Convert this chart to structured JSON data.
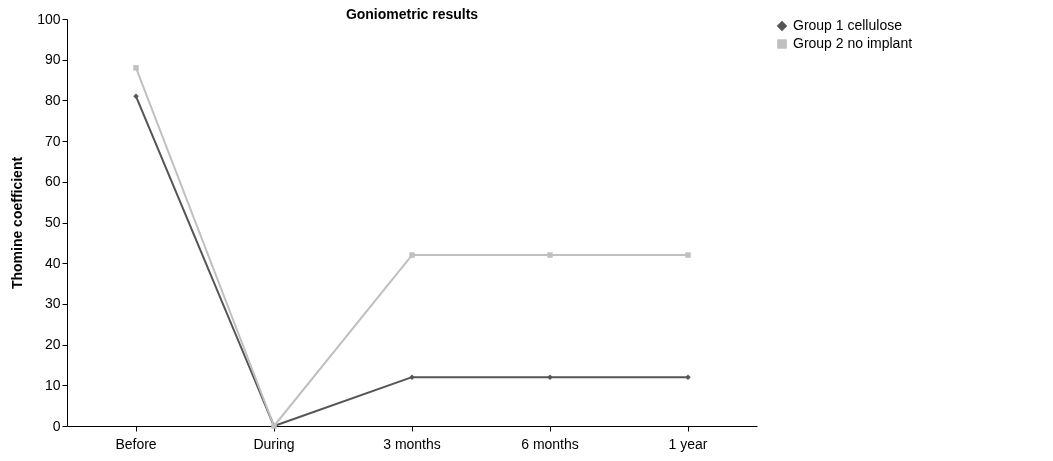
{
  "chart_data": {
    "type": "line",
    "title": "Goniometric results",
    "ylabel": "Thomine coefficient",
    "categories": [
      "Before",
      "During",
      "3 months",
      "6 months",
      "1 year"
    ],
    "series": [
      {
        "name": "Group 1 cellulose",
        "color": "#555555",
        "marker": "diamond",
        "values": [
          81,
          0,
          12,
          12,
          12
        ]
      },
      {
        "name": "Group 2 no implant",
        "color": "#c0c0c0",
        "marker": "square",
        "values": [
          88,
          0,
          42,
          42,
          42
        ]
      }
    ],
    "ylim": [
      0,
      100
    ],
    "yticks": [
      0,
      10,
      20,
      30,
      40,
      50,
      60,
      70,
      80,
      90,
      100
    ],
    "grid": false,
    "legend": "right"
  }
}
